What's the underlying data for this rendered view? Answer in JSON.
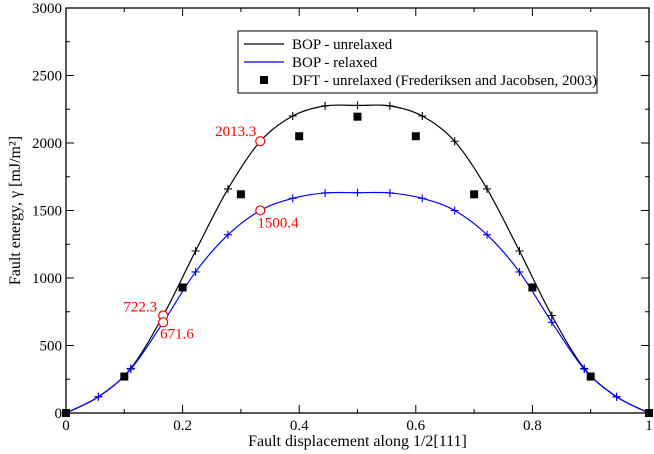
{
  "chart_data": {
    "type": "line",
    "xlabel": "Fault displacement along 1/2[111]",
    "ylabel": "Fault energy,  γ [mJ/m²]",
    "xlim": [
      0,
      1
    ],
    "ylim": [
      0,
      3000
    ],
    "x_ticks": [
      "0",
      "0.2",
      "0.4",
      "0.6",
      "0.8",
      "1"
    ],
    "y_ticks": [
      "0",
      "500",
      "1000",
      "1500",
      "2000",
      "2500",
      "3000"
    ],
    "legend_position": "top-right",
    "series": [
      {
        "name": "BOP - unrelaxed",
        "color": "#000000",
        "marker": "plus",
        "x": [
          0,
          0.0556,
          0.1111,
          0.1667,
          0.2222,
          0.2778,
          0.3333,
          0.3889,
          0.4444,
          0.5,
          0.5556,
          0.6111,
          0.6667,
          0.7222,
          0.7778,
          0.8333,
          0.8889,
          0.9444,
          1
        ],
        "y": [
          0,
          120,
          330,
          722,
          1200,
          1660,
          2013,
          2200,
          2275,
          2278,
          2275,
          2200,
          2013,
          1660,
          1200,
          722,
          330,
          120,
          0
        ]
      },
      {
        "name": "BOP - relaxed",
        "color": "#0000ff",
        "marker": "plus",
        "x": [
          0,
          0.0556,
          0.1111,
          0.1667,
          0.2222,
          0.2778,
          0.3333,
          0.3889,
          0.4444,
          0.5,
          0.5556,
          0.6111,
          0.6667,
          0.7222,
          0.7778,
          0.8333,
          0.8889,
          0.9444,
          1
        ],
        "y": [
          0,
          120,
          325,
          672,
          1045,
          1320,
          1500,
          1590,
          1630,
          1632,
          1630,
          1590,
          1500,
          1320,
          1045,
          672,
          325,
          120,
          0
        ]
      },
      {
        "name": "DFT - unrelaxed (Frederiksen and Jacobsen, 2003)",
        "color": "#000000",
        "marker": "square",
        "x": [
          0,
          0.1,
          0.2,
          0.3,
          0.4,
          0.5,
          0.6,
          0.7,
          0.8,
          0.9,
          1
        ],
        "y": [
          0,
          270,
          930,
          1620,
          2050,
          2195,
          2050,
          1620,
          930,
          270,
          0
        ]
      }
    ],
    "annotations": [
      {
        "text": "2013.3",
        "x": 0.3333,
        "y": 2013.3,
        "color": "#ff0000"
      },
      {
        "text": "1500.4",
        "x": 0.3333,
        "y": 1500.4,
        "color": "#ff0000"
      },
      {
        "text": "722.3",
        "x": 0.1667,
        "y": 722.3,
        "color": "#ff0000"
      },
      {
        "text": "671.6",
        "x": 0.1667,
        "y": 671.6,
        "color": "#ff0000"
      }
    ]
  }
}
